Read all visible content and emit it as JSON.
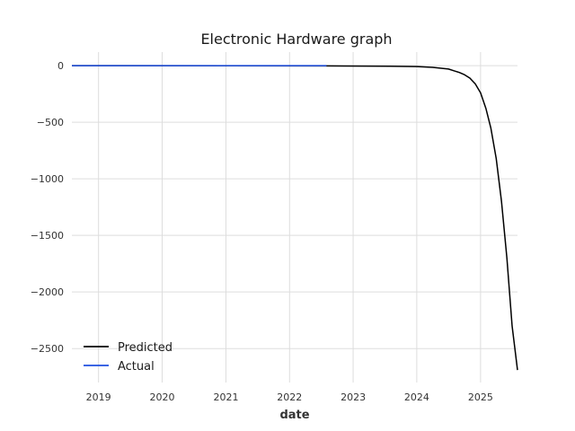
{
  "chart_data": {
    "type": "line",
    "title": "Electronic Hardware graph",
    "xlabel": "date",
    "ylabel": "",
    "xlim": [
      "2018-08-01",
      "2025-08-01"
    ],
    "ylim": [
      -2800,
      120
    ],
    "x_ticks": [
      "2019",
      "2020",
      "2021",
      "2022",
      "2023",
      "2024",
      "2025"
    ],
    "y_ticks": [
      0,
      -500,
      -1000,
      -1500,
      -2000,
      -2500
    ],
    "y_tick_labels": [
      "0",
      "−500",
      "−1000",
      "−1500",
      "−2000",
      "−2500"
    ],
    "grid": true,
    "legend_position": "lower-left",
    "series": [
      {
        "name": "Predicted",
        "color": "#000000",
        "x": [
          "2018-08-01",
          "2022-08-01",
          "2023-08-01",
          "2024-01-01",
          "2024-04-01",
          "2024-07-01",
          "2024-08-01",
          "2024-09-01",
          "2024-10-01",
          "2024-11-01",
          "2024-12-01",
          "2025-01-01",
          "2025-02-01",
          "2025-03-01",
          "2025-04-01",
          "2025-05-01",
          "2025-06-01",
          "2025-07-01",
          "2025-08-01"
        ],
        "y": [
          0,
          -2,
          -5,
          -8,
          -15,
          -30,
          -45,
          -60,
          -80,
          -110,
          -160,
          -240,
          -380,
          -550,
          -820,
          -1200,
          -1700,
          -2300,
          -2690
        ]
      },
      {
        "name": "Actual",
        "color": "#1f4fe0",
        "x": [
          "2018-08-01",
          "2022-08-01"
        ],
        "y": [
          0,
          0
        ]
      }
    ]
  }
}
